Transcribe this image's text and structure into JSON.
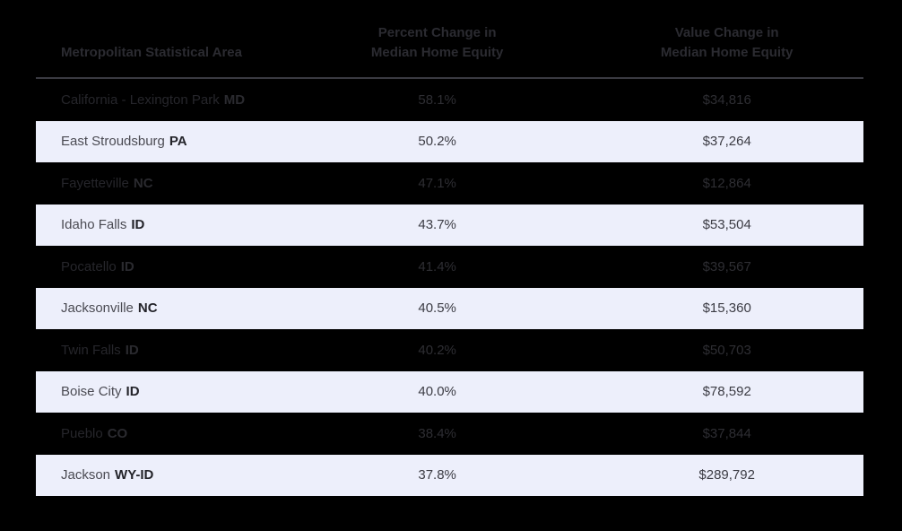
{
  "chart_data": {
    "type": "table",
    "title": "",
    "columns": [
      "Metropolitan Statistical Area",
      "Percent Change in Median Home Equity",
      "Value Change in Median Home Equity"
    ],
    "rows": [
      {
        "msa": "California - Lexington Park",
        "state": "MD",
        "percent_change": 58.1,
        "value_change_usd": 34816,
        "percent_label": "58.1%",
        "value_label": "$34,816"
      },
      {
        "msa": "East Stroudsburg",
        "state": "PA",
        "percent_change": 50.2,
        "value_change_usd": 37264,
        "percent_label": "50.2%",
        "value_label": "$37,264"
      },
      {
        "msa": "Fayetteville",
        "state": "NC",
        "percent_change": 47.1,
        "value_change_usd": 12864,
        "percent_label": "47.1%",
        "value_label": "$12,864"
      },
      {
        "msa": "Idaho Falls",
        "state": "ID",
        "percent_change": 43.7,
        "value_change_usd": 53504,
        "percent_label": "43.7%",
        "value_label": "$53,504"
      },
      {
        "msa": "Pocatello",
        "state": "ID",
        "percent_change": 41.4,
        "value_change_usd": 39567,
        "percent_label": "41.4%",
        "value_label": "$39,567"
      },
      {
        "msa": "Jacksonville",
        "state": "NC",
        "percent_change": 40.5,
        "value_change_usd": 15360,
        "percent_label": "40.5%",
        "value_label": "$15,360"
      },
      {
        "msa": "Twin Falls",
        "state": "ID",
        "percent_change": 40.2,
        "value_change_usd": 50703,
        "percent_label": "40.2%",
        "value_label": "$50,703"
      },
      {
        "msa": "Boise City",
        "state": "ID",
        "percent_change": 40.0,
        "value_change_usd": 78592,
        "percent_label": "40.0%",
        "value_label": "$78,592"
      },
      {
        "msa": "Pueblo",
        "state": "CO",
        "percent_change": 38.4,
        "value_change_usd": 37844,
        "percent_label": "38.4%",
        "value_label": "$37,844"
      },
      {
        "msa": "Jackson",
        "state": "WY-ID",
        "percent_change": 37.8,
        "value_change_usd": 289792,
        "percent_label": "37.8%",
        "value_label": "$289,792"
      }
    ]
  },
  "header": {
    "col1": "Metropolitan Statistical Area",
    "col2_line1": "Percent Change in",
    "col2_line2": "Median Home Equity",
    "col3_line1": "Value Change in",
    "col3_line2": "Median Home Equity"
  },
  "colors": {
    "page_background": "#000000",
    "row_highlight_background": "#edeffb",
    "header_divider": "#3a3a41",
    "header_text": "#2b2b31",
    "light_row_text": "#4b4b53",
    "dark_row_text": "#26262b"
  }
}
